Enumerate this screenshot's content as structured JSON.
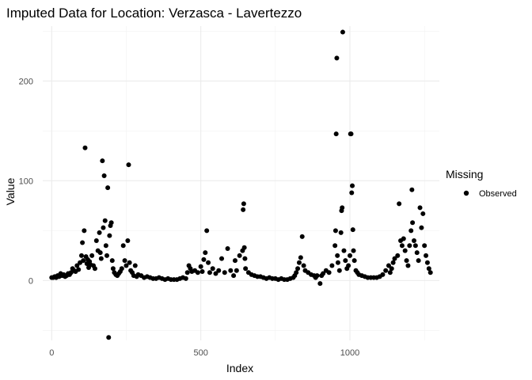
{
  "chart_data": {
    "type": "scatter",
    "title": "Imputed Data for Location: Verzasca - Lavertezzo",
    "xlabel": "Index",
    "ylabel": "Value",
    "xlim": [
      -30,
      1300
    ],
    "ylim": [
      -60,
      255
    ],
    "x_ticks": [
      0,
      500,
      1000
    ],
    "x_tick_labels": [
      "0",
      "500",
      "1000"
    ],
    "y_ticks": [
      0,
      100,
      200
    ],
    "y_tick_labels": [
      "0",
      "100",
      "200"
    ],
    "grid": true,
    "legend": {
      "title": "Missing",
      "position": "right",
      "entries": [
        "Observed"
      ]
    },
    "colors": {
      "Observed": "#000000"
    },
    "series": [
      {
        "name": "Observed",
        "points": [
          [
            0,
            3
          ],
          [
            5,
            3
          ],
          [
            10,
            4
          ],
          [
            15,
            3
          ],
          [
            20,
            5
          ],
          [
            25,
            4
          ],
          [
            30,
            7
          ],
          [
            35,
            5
          ],
          [
            40,
            6
          ],
          [
            45,
            4
          ],
          [
            50,
            5
          ],
          [
            55,
            7
          ],
          [
            60,
            6
          ],
          [
            65,
            8
          ],
          [
            70,
            12
          ],
          [
            75,
            10
          ],
          [
            80,
            9
          ],
          [
            85,
            15
          ],
          [
            90,
            11
          ],
          [
            95,
            18
          ],
          [
            100,
            25
          ],
          [
            103,
            38
          ],
          [
            106,
            20
          ],
          [
            109,
            50
          ],
          [
            112,
            133
          ],
          [
            115,
            24
          ],
          [
            118,
            17
          ],
          [
            121,
            21
          ],
          [
            124,
            13
          ],
          [
            127,
            19
          ],
          [
            130,
            16
          ],
          [
            135,
            25
          ],
          [
            140,
            15
          ],
          [
            145,
            12
          ],
          [
            150,
            40
          ],
          [
            155,
            30
          ],
          [
            160,
            48
          ],
          [
            163,
            28
          ],
          [
            166,
            22
          ],
          [
            170,
            120
          ],
          [
            173,
            53
          ],
          [
            176,
            105
          ],
          [
            179,
            60
          ],
          [
            182,
            35
          ],
          [
            185,
            25
          ],
          [
            188,
            93
          ],
          [
            191,
            -57
          ],
          [
            194,
            45
          ],
          [
            197,
            55
          ],
          [
            200,
            58
          ],
          [
            203,
            20
          ],
          [
            206,
            12
          ],
          [
            210,
            8
          ],
          [
            215,
            6
          ],
          [
            220,
            5
          ],
          [
            225,
            7
          ],
          [
            230,
            9
          ],
          [
            235,
            12
          ],
          [
            240,
            35
          ],
          [
            245,
            20
          ],
          [
            250,
            15
          ],
          [
            255,
            40
          ],
          [
            258,
            116
          ],
          [
            261,
            18
          ],
          [
            265,
            10
          ],
          [
            270,
            8
          ],
          [
            275,
            5
          ],
          [
            280,
            15
          ],
          [
            285,
            4
          ],
          [
            290,
            6
          ],
          [
            300,
            5
          ],
          [
            310,
            3
          ],
          [
            320,
            4
          ],
          [
            330,
            3
          ],
          [
            340,
            2
          ],
          [
            350,
            2
          ],
          [
            360,
            3
          ],
          [
            370,
            2
          ],
          [
            380,
            1
          ],
          [
            390,
            2
          ],
          [
            400,
            1
          ],
          [
            410,
            1
          ],
          [
            420,
            1
          ],
          [
            430,
            2
          ],
          [
            440,
            3
          ],
          [
            450,
            2
          ],
          [
            455,
            8
          ],
          [
            460,
            15
          ],
          [
            465,
            12
          ],
          [
            470,
            9
          ],
          [
            480,
            10
          ],
          [
            490,
            8
          ],
          [
            500,
            14
          ],
          [
            505,
            9
          ],
          [
            510,
            21
          ],
          [
            515,
            28
          ],
          [
            520,
            50
          ],
          [
            525,
            18
          ],
          [
            530,
            8
          ],
          [
            540,
            12
          ],
          [
            550,
            7
          ],
          [
            560,
            10
          ],
          [
            570,
            22
          ],
          [
            580,
            8
          ],
          [
            590,
            32
          ],
          [
            600,
            10
          ],
          [
            610,
            5
          ],
          [
            615,
            20
          ],
          [
            620,
            10
          ],
          [
            630,
            25
          ],
          [
            640,
            30
          ],
          [
            642,
            71
          ],
          [
            644,
            77
          ],
          [
            646,
            33
          ],
          [
            648,
            22
          ],
          [
            650,
            12
          ],
          [
            660,
            8
          ],
          [
            670,
            6
          ],
          [
            680,
            5
          ],
          [
            690,
            4
          ],
          [
            700,
            4
          ],
          [
            710,
            3
          ],
          [
            720,
            2
          ],
          [
            730,
            3
          ],
          [
            740,
            2
          ],
          [
            750,
            2
          ],
          [
            760,
            1
          ],
          [
            770,
            2
          ],
          [
            780,
            1
          ],
          [
            790,
            1
          ],
          [
            800,
            2
          ],
          [
            810,
            3
          ],
          [
            815,
            5
          ],
          [
            820,
            8
          ],
          [
            825,
            12
          ],
          [
            830,
            18
          ],
          [
            835,
            23
          ],
          [
            840,
            44
          ],
          [
            845,
            15
          ],
          [
            850,
            10
          ],
          [
            860,
            8
          ],
          [
            870,
            6
          ],
          [
            880,
            5
          ],
          [
            885,
            3
          ],
          [
            890,
            5
          ],
          [
            900,
            -3
          ],
          [
            905,
            5
          ],
          [
            910,
            7
          ],
          [
            920,
            10
          ],
          [
            930,
            8
          ],
          [
            940,
            15
          ],
          [
            950,
            35
          ],
          [
            952,
            50
          ],
          [
            954,
            147
          ],
          [
            956,
            223
          ],
          [
            958,
            25
          ],
          [
            960,
            18
          ],
          [
            965,
            10
          ],
          [
            970,
            48
          ],
          [
            972,
            70
          ],
          [
            974,
            73
          ],
          [
            976,
            249
          ],
          [
            980,
            30
          ],
          [
            985,
            20
          ],
          [
            990,
            12
          ],
          [
            995,
            15
          ],
          [
            1000,
            25
          ],
          [
            1002,
            147
          ],
          [
            1004,
            147
          ],
          [
            1006,
            88
          ],
          [
            1008,
            95
          ],
          [
            1010,
            51
          ],
          [
            1012,
            30
          ],
          [
            1015,
            20
          ],
          [
            1020,
            10
          ],
          [
            1025,
            8
          ],
          [
            1030,
            6
          ],
          [
            1040,
            5
          ],
          [
            1050,
            4
          ],
          [
            1060,
            3
          ],
          [
            1070,
            3
          ],
          [
            1080,
            3
          ],
          [
            1090,
            3
          ],
          [
            1100,
            4
          ],
          [
            1110,
            6
          ],
          [
            1120,
            10
          ],
          [
            1130,
            15
          ],
          [
            1135,
            8
          ],
          [
            1140,
            12
          ],
          [
            1145,
            18
          ],
          [
            1150,
            22
          ],
          [
            1160,
            25
          ],
          [
            1165,
            77
          ],
          [
            1170,
            40
          ],
          [
            1175,
            35
          ],
          [
            1180,
            42
          ],
          [
            1185,
            30
          ],
          [
            1190,
            20
          ],
          [
            1195,
            15
          ],
          [
            1200,
            35
          ],
          [
            1205,
            50
          ],
          [
            1208,
            91
          ],
          [
            1210,
            58
          ],
          [
            1215,
            40
          ],
          [
            1220,
            35
          ],
          [
            1225,
            28
          ],
          [
            1230,
            20
          ],
          [
            1235,
            73
          ],
          [
            1240,
            53
          ],
          [
            1245,
            67
          ],
          [
            1250,
            35
          ],
          [
            1255,
            25
          ],
          [
            1260,
            18
          ],
          [
            1265,
            12
          ],
          [
            1270,
            8
          ]
        ]
      }
    ]
  }
}
